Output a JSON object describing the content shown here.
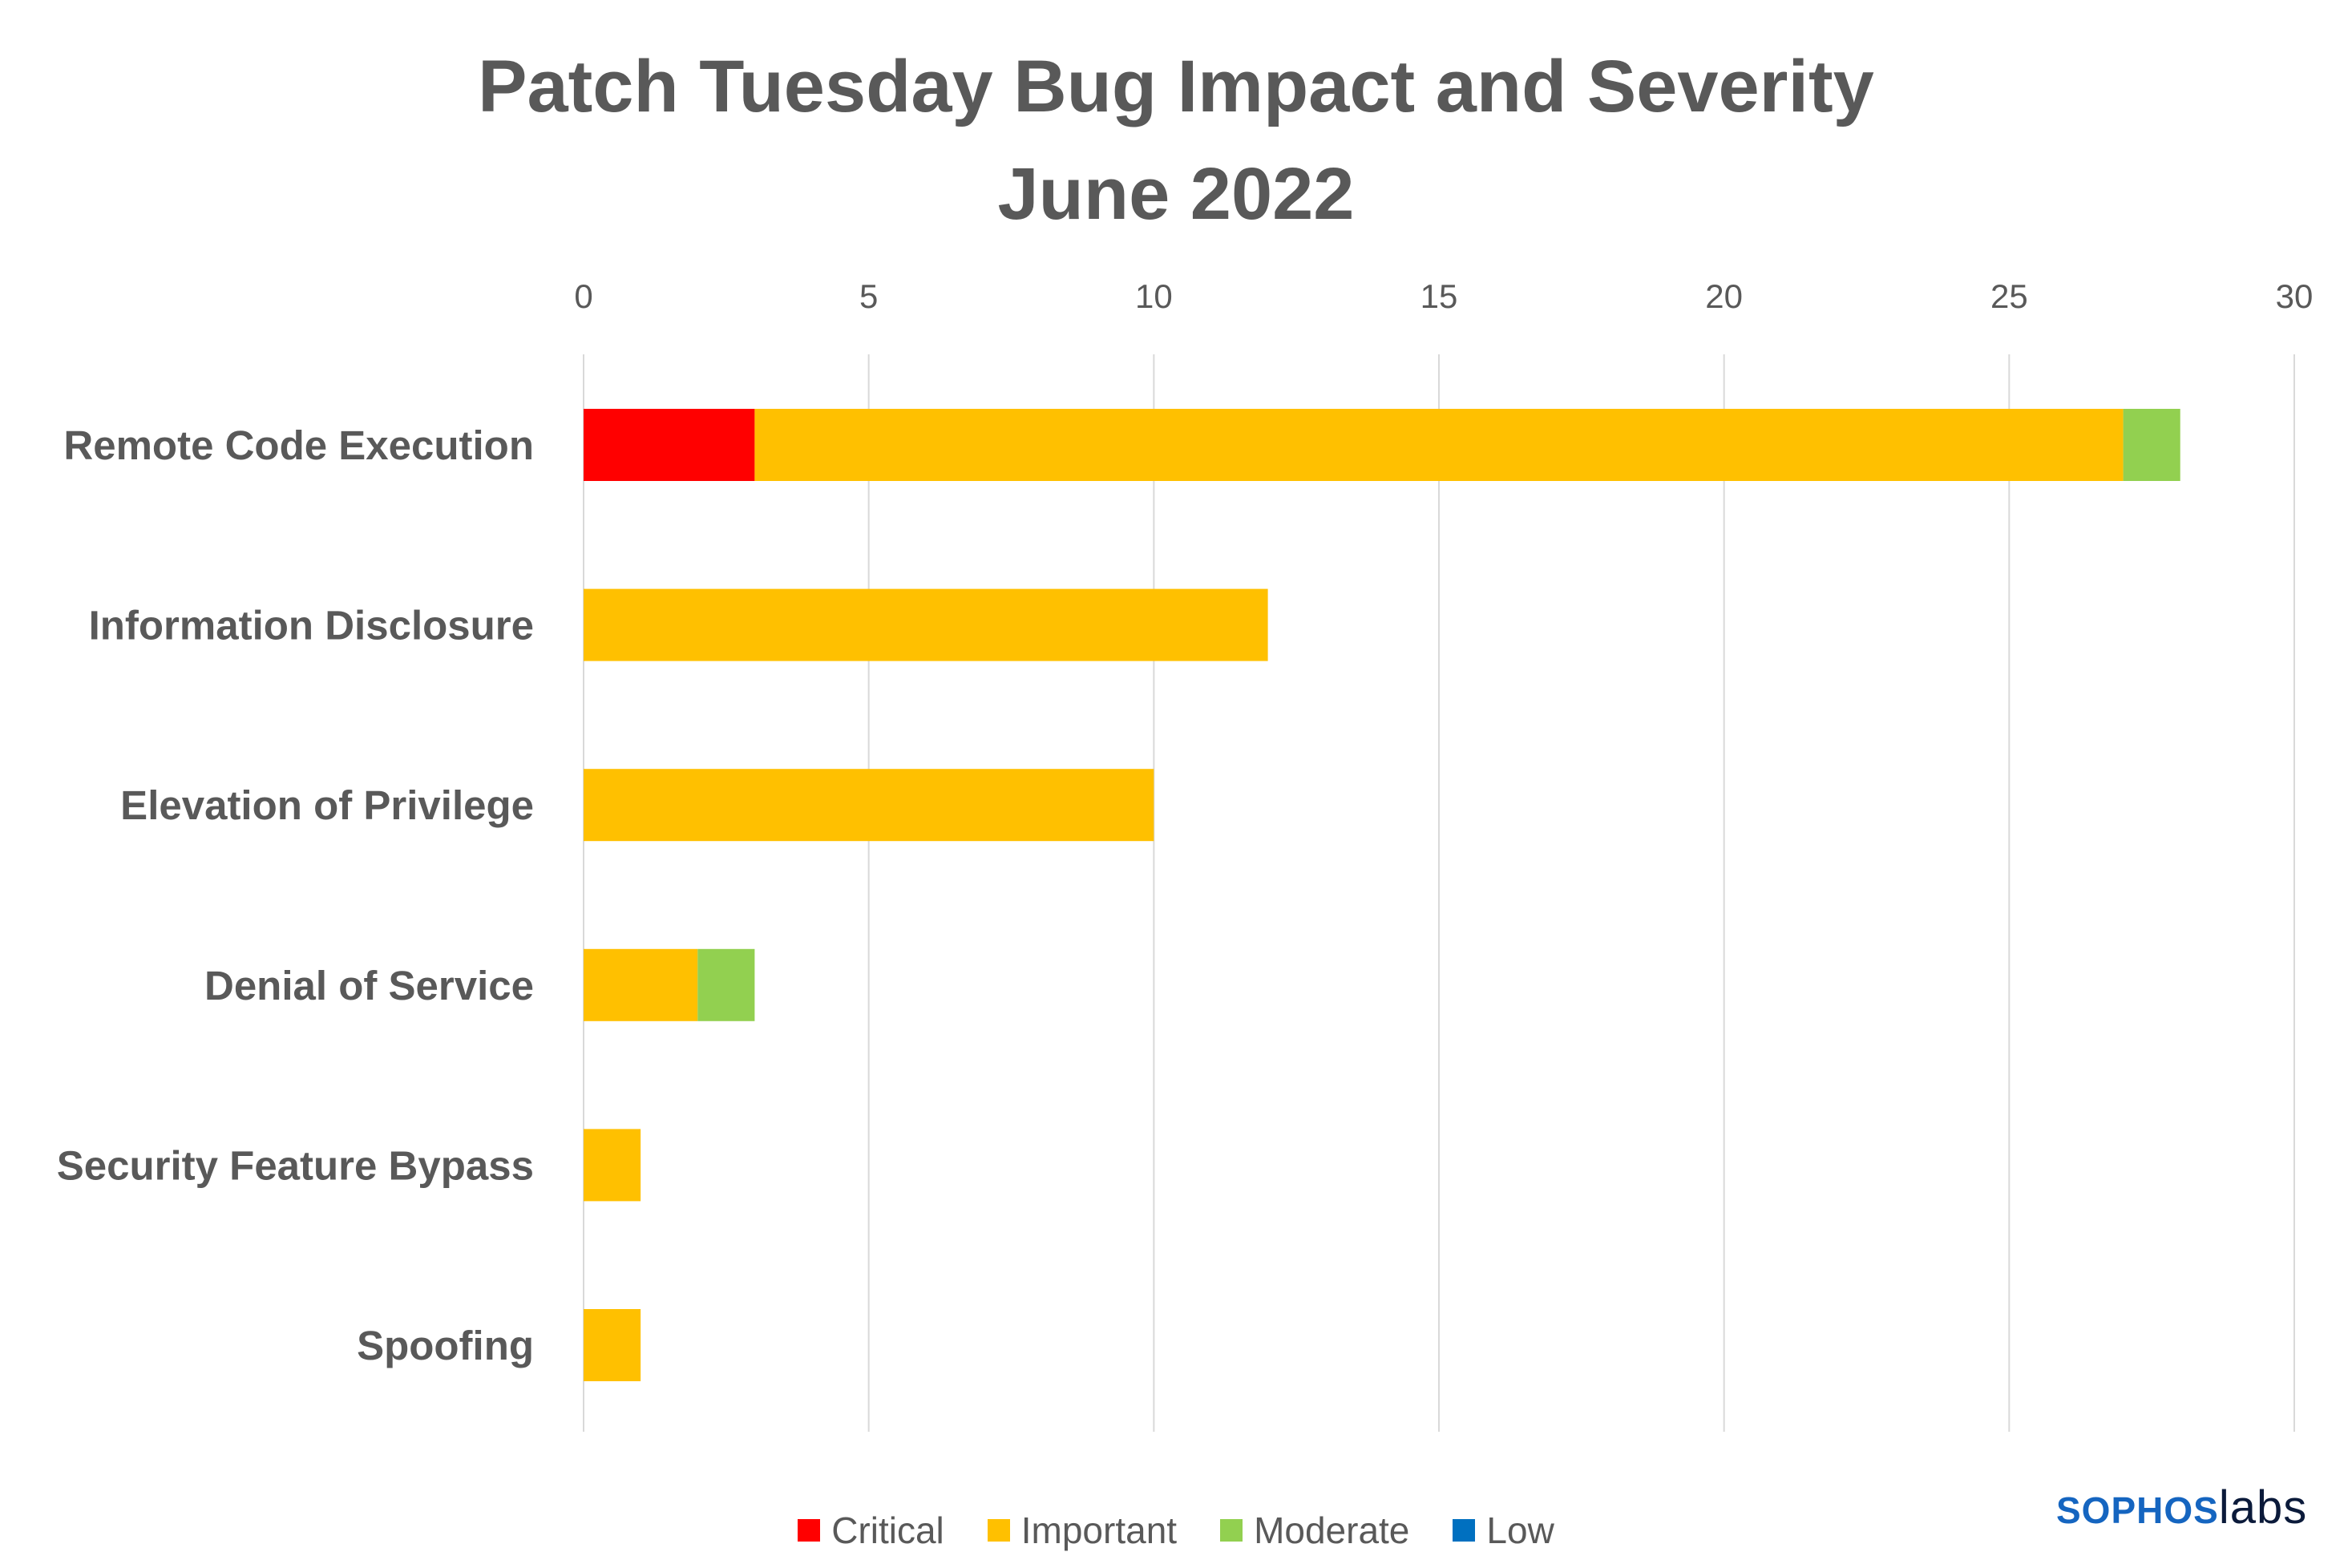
{
  "chart_data": {
    "type": "bar",
    "orientation": "horizontal",
    "stacked": true,
    "title": [
      "Patch Tuesday Bug Impact and Severity",
      "June 2022"
    ],
    "categories": [
      "Remote Code Execution",
      "Information Disclosure",
      "Elevation of Privilege",
      "Denial of Service",
      "Security Feature Bypass",
      "Spoofing"
    ],
    "series": [
      {
        "name": "Critical",
        "color": "#ff0000",
        "values": [
          3,
          0,
          0,
          0,
          0,
          0
        ]
      },
      {
        "name": "Important",
        "color": "#ffc000",
        "values": [
          24,
          12,
          10,
          2,
          1,
          1
        ]
      },
      {
        "name": "Moderate",
        "color": "#92d050",
        "values": [
          1,
          0,
          0,
          1,
          0,
          0
        ]
      },
      {
        "name": "Low",
        "color": "#0070c0",
        "values": [
          0,
          0,
          0,
          0,
          0,
          0
        ]
      }
    ],
    "xlim": [
      0,
      30
    ],
    "xticks": [
      "0",
      "5",
      "10",
      "15",
      "20",
      "25",
      "30"
    ],
    "xaxis_position": "top",
    "grid": true,
    "legend_position": "bottom"
  },
  "logo": {
    "part1": "SOPHOS",
    "part2": "labs"
  }
}
